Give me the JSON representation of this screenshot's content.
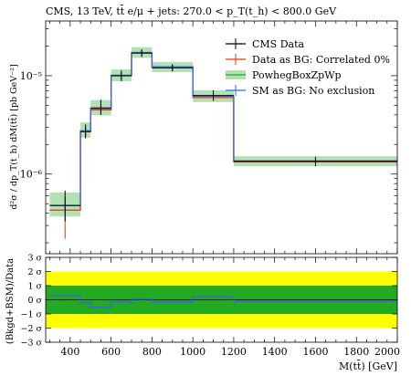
{
  "chart_data": [
    {
      "type": "line",
      "title": "CMS, 13 TeV, tt̄ e/μ + jets: 270.0 < p_T(t_h) < 800.0 GeV",
      "xlabel": "",
      "ylabel": "d²σ / dp_T(t_h) dM(tt̄) [pb GeV⁻²]",
      "yscale": "log",
      "xlim": [
        280,
        2000
      ],
      "ylim": [
        1.55e-07,
        3.6e-05
      ],
      "ytick_labels": [
        {
          "value": 1e-05,
          "label": "10⁻⁵"
        },
        {
          "value": 1e-06,
          "label": "10⁻⁶"
        }
      ],
      "bin_edges": [
        300,
        450,
        500,
        600,
        700,
        800,
        1000,
        1200,
        2000
      ],
      "legend_position": "top-right",
      "series": [
        {
          "name": "CMS Data",
          "color": "#000000",
          "style": "errorbar",
          "values": [
            4.8e-07,
            2.7e-06,
            4.7e-06,
            1e-05,
            1.7e-05,
            1.2e-05,
            6.3e-06,
            1.35e-06
          ],
          "errors": [
            [
              1.5e-07,
              2e-07
            ],
            [
              4e-07,
              5e-07
            ],
            [
              7e-07,
              1e-06
            ],
            [
              1.2e-06,
              1.3e-06
            ],
            [
              1.5e-06,
              1.6e-06
            ],
            [
              1e-06,
              1e-06
            ],
            [
              7e-07,
              8e-07
            ],
            [
              1.5e-07,
              1.5e-07
            ]
          ]
        },
        {
          "name": "Data as BG: Correlated 0%",
          "color": "#ee3311",
          "style": "step",
          "values": [
            4.3e-07,
            2.7e-06,
            4.5e-06,
            1e-05,
            1.7e-05,
            1.22e-05,
            6e-06,
            1.33e-06
          ],
          "errors": [
            [
              2.1e-07,
              1.6e-07
            ],
            [
              3e-07,
              3e-07
            ],
            [
              5e-07,
              5e-07
            ],
            [
              8e-07,
              8e-07
            ],
            [
              1.2e-06,
              1.2e-06
            ],
            [
              8e-07,
              8e-07
            ],
            [
              5e-07,
              5e-07
            ],
            [
              1e-07,
              1e-07
            ]
          ]
        },
        {
          "name": "PowhegBoxZpWp",
          "color": "#22aa22",
          "style": "band",
          "values": [
            4.8e-07,
            2.75e-06,
            4.65e-06,
            1.01e-05,
            1.72e-05,
            1.23e-05,
            6.2e-06,
            1.36e-06
          ],
          "band": [
            [
              3.7e-07,
              6.5e-07
            ],
            [
              2.35e-06,
              3.35e-06
            ],
            [
              3.95e-06,
              5.65e-06
            ],
            [
              8.8e-06,
              1.16e-05
            ],
            [
              1.52e-05,
              1.95e-05
            ],
            [
              1.09e-05,
              1.38e-05
            ],
            [
              5.4e-06,
              7.1e-06
            ],
            [
              1.2e-06,
              1.52e-06
            ]
          ]
        },
        {
          "name": "SM as BG: No exclusion",
          "color": "#3366ee",
          "style": "step",
          "values": [
            4.8e-07,
            2.75e-06,
            4.65e-06,
            1.01e-05,
            1.72e-05,
            1.23e-05,
            6.2e-06,
            1.36e-06
          ],
          "errors": [
            [
              1e-07,
              1e-07
            ],
            [
              3e-07,
              3e-07
            ],
            [
              4e-07,
              4e-07
            ],
            [
              8e-07,
              8e-07
            ],
            [
              1e-06,
              1e-06
            ],
            [
              8e-07,
              8e-07
            ],
            [
              4e-07,
              4e-07
            ],
            [
              1e-07,
              1e-07
            ]
          ]
        }
      ]
    },
    {
      "type": "line",
      "xlabel": "M(tt̄) [GeV]",
      "ylabel": "(Bkgd+BSM)/Data",
      "xlim": [
        280,
        2000
      ],
      "ylim": [
        -3,
        3
      ],
      "xticks": [
        400,
        600,
        800,
        1000,
        1200,
        1400,
        1600,
        1800,
        2000
      ],
      "yticks": [
        {
          "value": 3,
          "label": "3 σ"
        },
        {
          "value": 2,
          "label": "2 σ"
        },
        {
          "value": 1,
          "label": "1 σ"
        },
        {
          "value": 0,
          "label": "0 σ"
        },
        {
          "value": -1,
          "label": "−1 σ"
        },
        {
          "value": -2,
          "label": "−2 σ"
        },
        {
          "value": -3,
          "label": "−3 σ"
        }
      ],
      "bands": [
        {
          "name": "2 sigma",
          "range": [
            -2,
            2
          ],
          "color": "#ffff00"
        },
        {
          "name": "1 sigma",
          "range": [
            -1,
            1
          ],
          "color": "#22aa22"
        }
      ],
      "bin_edges": [
        300,
        450,
        500,
        600,
        700,
        800,
        1000,
        1200,
        2000
      ],
      "series": [
        {
          "name": "pull",
          "color": "#3366ee",
          "values": [
            0.3,
            -0.2,
            -0.55,
            -0.15,
            0.05,
            -0.15,
            0.2,
            -0.1
          ]
        }
      ]
    }
  ]
}
